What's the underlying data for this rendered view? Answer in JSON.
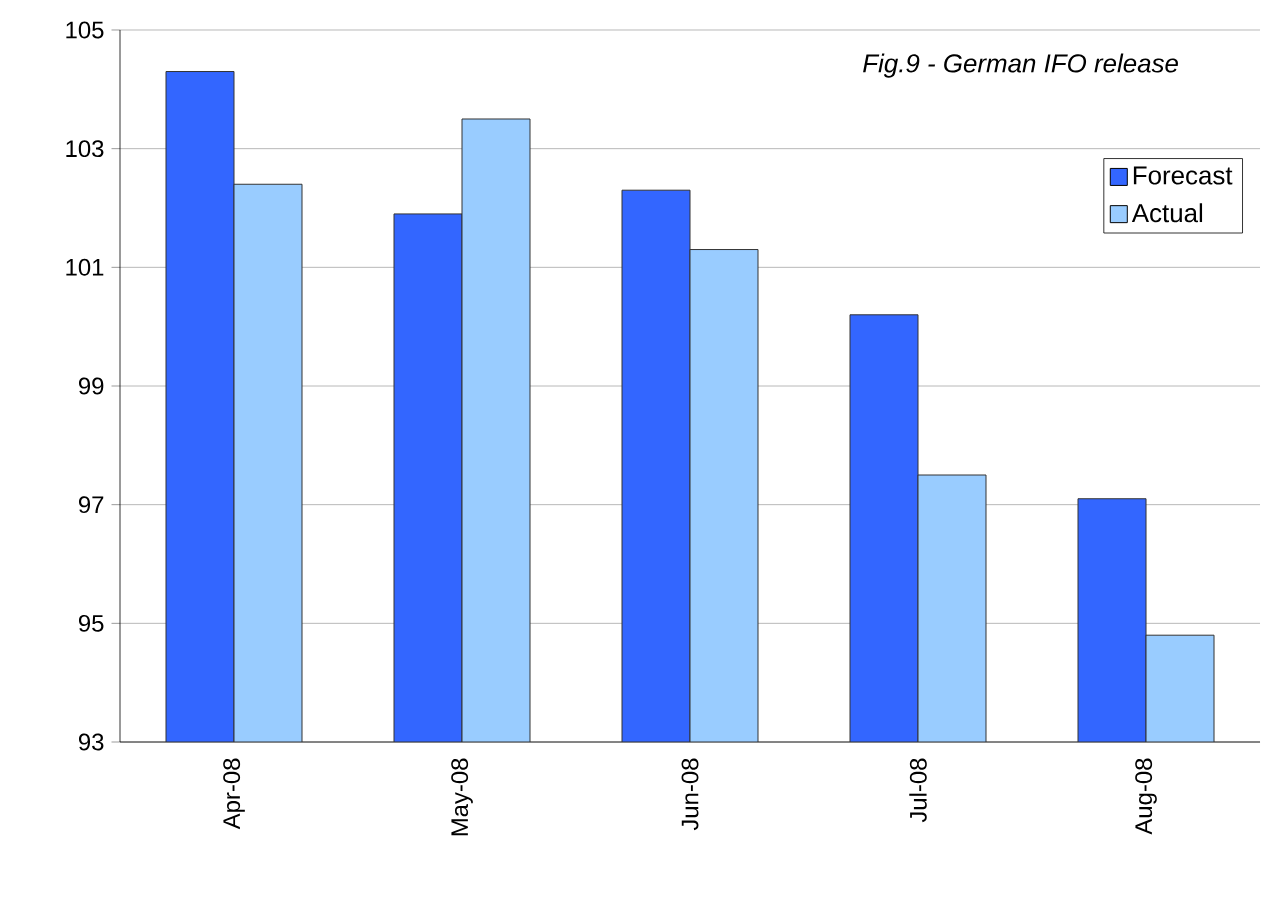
{
  "chart_data": {
    "type": "bar",
    "title": "Fig.9 - German IFO release",
    "categories": [
      "Apr-08",
      "May-08",
      "Jun-08",
      "Jul-08",
      "Aug-08"
    ],
    "series": [
      {
        "name": "Forecast",
        "color": "#3366ff",
        "values": [
          104.3,
          101.9,
          102.3,
          100.2,
          97.1
        ]
      },
      {
        "name": "Actual",
        "color": "#99ccff",
        "values": [
          102.4,
          103.5,
          101.3,
          97.5,
          94.8
        ]
      }
    ],
    "ylim": [
      93,
      105
    ],
    "yticks": [
      93,
      95,
      97,
      99,
      101,
      103,
      105
    ],
    "grid": "y",
    "legend": "top right"
  }
}
